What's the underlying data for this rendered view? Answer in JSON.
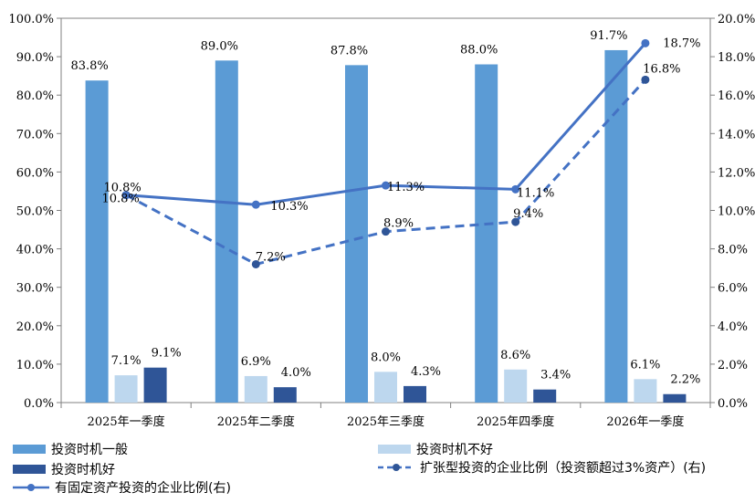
{
  "chart_data": {
    "type": "bar",
    "categories": [
      "2025年一季度",
      "2025年二季度",
      "2025年三季度",
      "2025年四季度",
      "2026年一季度"
    ],
    "left_axis": {
      "ticks": [
        "0.0%",
        "10.0%",
        "20.0%",
        "30.0%",
        "40.0%",
        "50.0%",
        "60.0%",
        "70.0%",
        "80.0%",
        "90.0%",
        "100.0%"
      ],
      "ylim": [
        0,
        100
      ]
    },
    "right_axis": {
      "ticks": [
        "0.0%",
        "2.0%",
        "4.0%",
        "6.0%",
        "8.0%",
        "10.0%",
        "12.0%",
        "14.0%",
        "16.0%",
        "18.0%",
        "20.0%"
      ],
      "ylim": [
        0,
        20
      ]
    },
    "bar_series": [
      {
        "name": "投资时机一般",
        "color": "#5b9bd5",
        "values": [
          83.8,
          89.0,
          87.8,
          88.0,
          91.7
        ],
        "labels": [
          "83.8%",
          "89.0%",
          "87.8%",
          "88.0%",
          "91.7%"
        ]
      },
      {
        "name": "投资时机不好",
        "color": "#bdd7ee",
        "values": [
          7.1,
          6.9,
          8.0,
          8.6,
          6.1
        ],
        "labels": [
          "7.1%",
          "6.9%",
          "8.0%",
          "8.6%",
          "6.1%"
        ]
      },
      {
        "name": "投资时机好",
        "color": "#2f5597",
        "values": [
          9.1,
          4.0,
          4.3,
          3.4,
          2.2
        ],
        "labels": [
          "9.1%",
          "4.0%",
          "4.3%",
          "3.4%",
          "2.2%"
        ]
      }
    ],
    "line_series": [
      {
        "name": "扩张型投资的企业比例（投资额超过3%资产）(右)",
        "color": "#4472c4",
        "style": "dashed",
        "values": [
          10.8,
          7.2,
          8.9,
          9.4,
          16.8
        ],
        "labels": [
          "10.8%",
          "7.2%",
          "8.9%",
          "9.4%",
          "16.8%"
        ]
      },
      {
        "name": "有固定资产投资的企业比例(右)",
        "color": "#4472c4",
        "style": "solid",
        "values": [
          10.8,
          10.3,
          11.3,
          11.1,
          18.7
        ],
        "labels": [
          "10.8%",
          "10.3%",
          "11.3%",
          "11.1%",
          "18.7%"
        ]
      }
    ],
    "legend": "bottom"
  }
}
